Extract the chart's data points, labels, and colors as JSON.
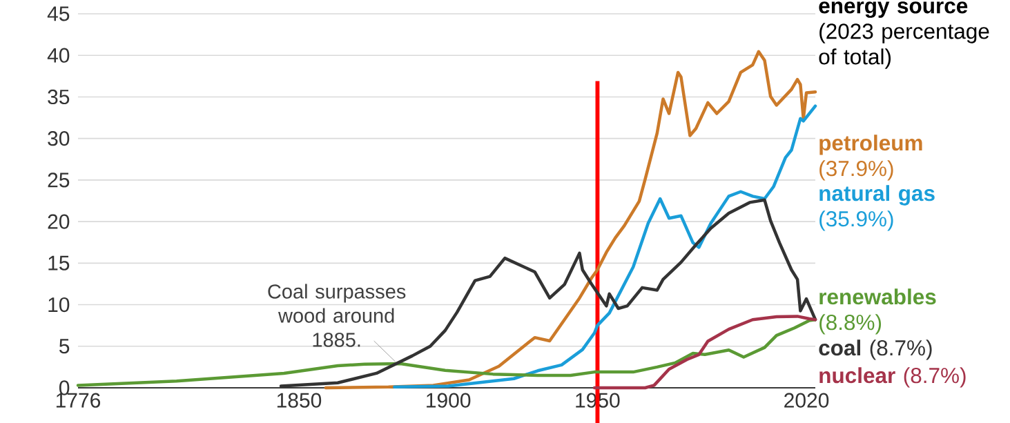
{
  "chart_data": {
    "type": "line",
    "legend_title": "**energy source** (2023 percentage of total)",
    "legend": "right",
    "grid": "y",
    "marker": "none",
    "line_style": "solid",
    "xlim": [
      1776,
      2023
    ],
    "xticks": [
      1776,
      1850,
      1900,
      1950,
      2020
    ],
    "ylim": [
      0,
      45
    ],
    "yticks": [
      0,
      5,
      10,
      15,
      20,
      25,
      30,
      35,
      40,
      45
    ],
    "series": [
      {
        "name": "**petroleum** (37.9%)",
        "color": "#cc7a29",
        "x": [
          1859,
          1880,
          1895,
          1907,
          1917,
          1929,
          1934,
          1944,
          1948,
          1950,
          1953,
          1956,
          1959,
          1964,
          1966,
          1970,
          1972,
          1974,
          1977,
          1978,
          1981,
          1983,
          1987,
          1990,
          1994,
          1998,
          2002,
          2004,
          2006,
          2008,
          2010,
          2015,
          2017,
          2018,
          2019,
          2020,
          2023
        ],
        "values": [
          0,
          0.1,
          0.3,
          0.95,
          2.6,
          6.05,
          5.65,
          10.8,
          13.2,
          14.2,
          16.3,
          18.05,
          19.5,
          22.45,
          25.1,
          30.65,
          34.75,
          33.0,
          37.95,
          37.4,
          30.35,
          31.2,
          34.3,
          33.0,
          34.45,
          37.95,
          38.85,
          40.45,
          39.4,
          35.05,
          34.0,
          35.9,
          37.1,
          36.5,
          32.4,
          35.5,
          35.6
        ]
      },
      {
        "name": "**natural gas** (35.9%)",
        "color": "#1a9ed9",
        "x": [
          1882,
          1900,
          1922,
          1930,
          1938,
          1945,
          1949,
          1950,
          1954,
          1962,
          1967,
          1971,
          1974,
          1978,
          1982,
          1984,
          1988,
          1994,
          1998,
          2002,
          2006,
          2009,
          2013,
          2015,
          2018,
          2019,
          2023
        ],
        "values": [
          0.1,
          0.2,
          1.1,
          2.05,
          2.75,
          4.6,
          6.6,
          7.5,
          9.0,
          14.55,
          19.8,
          22.75,
          20.4,
          20.7,
          17.45,
          16.9,
          19.8,
          23.05,
          23.6,
          23.05,
          22.75,
          24.2,
          27.7,
          28.6,
          32.4,
          32.1,
          33.9
        ]
      },
      {
        "name": "**renewables** (8.8%)",
        "color": "#5b9a34",
        "x": [
          1776,
          1809,
          1845,
          1863,
          1872,
          1884,
          1899,
          1915,
          1930,
          1941,
          1949,
          1962,
          1970,
          1976,
          1982,
          1986,
          1994,
          1999,
          2006,
          2010,
          2016,
          2021,
          2023
        ],
        "values": [
          0.3,
          0.8,
          1.75,
          2.65,
          2.85,
          2.9,
          2.1,
          1.65,
          1.5,
          1.5,
          1.9,
          1.9,
          2.5,
          3.0,
          4.15,
          4.0,
          4.55,
          3.7,
          4.85,
          6.3,
          7.2,
          8.1,
          8.2
        ]
      },
      {
        "name": "**coal** (8.7%)",
        "color": "#333333",
        "x": [
          1844,
          1863,
          1876,
          1888,
          1894,
          1899,
          1903,
          1909,
          1914,
          1919,
          1929,
          1934,
          1939,
          1944,
          1945,
          1948,
          1953,
          1954,
          1957,
          1960,
          1965,
          1970,
          1972,
          1978,
          1983,
          1988,
          1994,
          2001,
          2006,
          2008,
          2011,
          2015,
          2017,
          2018,
          2020,
          2023
        ],
        "values": [
          0.2,
          0.6,
          1.75,
          3.85,
          5.0,
          6.9,
          9.1,
          12.9,
          13.4,
          15.6,
          13.95,
          10.8,
          12.45,
          16.2,
          14.2,
          12.5,
          9.85,
          11.3,
          9.55,
          9.85,
          12.05,
          11.75,
          13.05,
          15.1,
          17.2,
          19.2,
          21.0,
          22.3,
          22.6,
          20.1,
          17.45,
          14.2,
          13.05,
          9.25,
          10.7,
          8.2
        ]
      },
      {
        "name": "**nuclear** (8.7%)",
        "color": "#a5334a",
        "x": [
          1949,
          1966,
          1969,
          1974,
          1980,
          1984,
          1987,
          1994,
          2002,
          2010,
          2017,
          2021,
          2023
        ],
        "values": [
          0,
          0,
          0.3,
          2.25,
          3.4,
          4.0,
          5.6,
          7.05,
          8.2,
          8.55,
          8.6,
          8.3,
          8.2
        ]
      }
    ],
    "annotations": [
      {
        "text": "Coal surpasses wood around 1885.",
        "x": 1883,
        "y": 2.9
      }
    ],
    "ref_lines": [
      {
        "axis": "x",
        "value": 1950,
        "color": "#ff0000"
      }
    ]
  }
}
